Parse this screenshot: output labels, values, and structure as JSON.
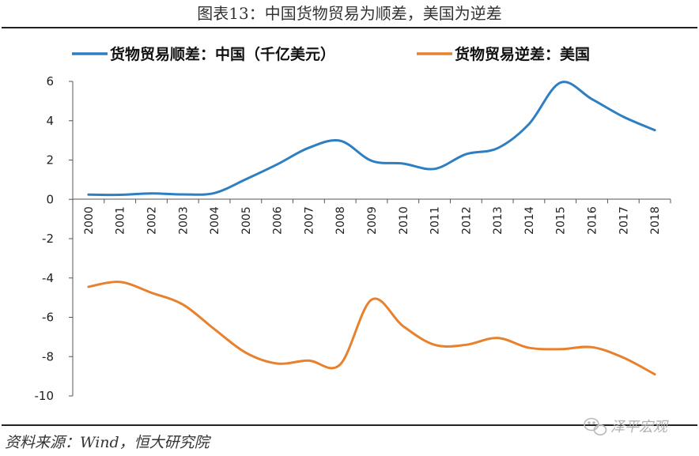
{
  "figure": {
    "title": "图表13：中国货物贸易为顺差，美国为逆差",
    "source": "资料来源：Wind，恒大研究院",
    "watermark": "泽平宏观"
  },
  "chart_data": {
    "type": "line",
    "title": "",
    "xlabel": "",
    "ylabel": "",
    "x": [
      "2000",
      "2001",
      "2002",
      "2003",
      "2004",
      "2005",
      "2006",
      "2007",
      "2008",
      "2009",
      "2010",
      "2011",
      "2012",
      "2013",
      "2014",
      "2015",
      "2016",
      "2017",
      "2018"
    ],
    "y_ticks": [
      "6",
      "4",
      "2",
      "0",
      "-2",
      "-4",
      "-6",
      "-8",
      "-10"
    ],
    "ylim": [
      -10,
      6
    ],
    "grid": false,
    "legend_position": "top",
    "series": [
      {
        "name": "货物贸易顺差：中国（千亿美元）",
        "color": "#2E7FC2",
        "values": [
          0.24,
          0.23,
          0.3,
          0.25,
          0.32,
          1.02,
          1.78,
          2.62,
          2.98,
          1.96,
          1.82,
          1.55,
          2.3,
          2.6,
          3.83,
          5.94,
          5.1,
          4.2,
          3.52
        ]
      },
      {
        "name": "货物贸易逆差：美国",
        "color": "#E8812E",
        "values": [
          -4.45,
          -4.2,
          -4.75,
          -5.35,
          -6.6,
          -7.8,
          -8.35,
          -8.2,
          -8.4,
          -5.1,
          -6.45,
          -7.4,
          -7.4,
          -7.05,
          -7.55,
          -7.62,
          -7.52,
          -8.05,
          -8.9
        ]
      }
    ]
  }
}
